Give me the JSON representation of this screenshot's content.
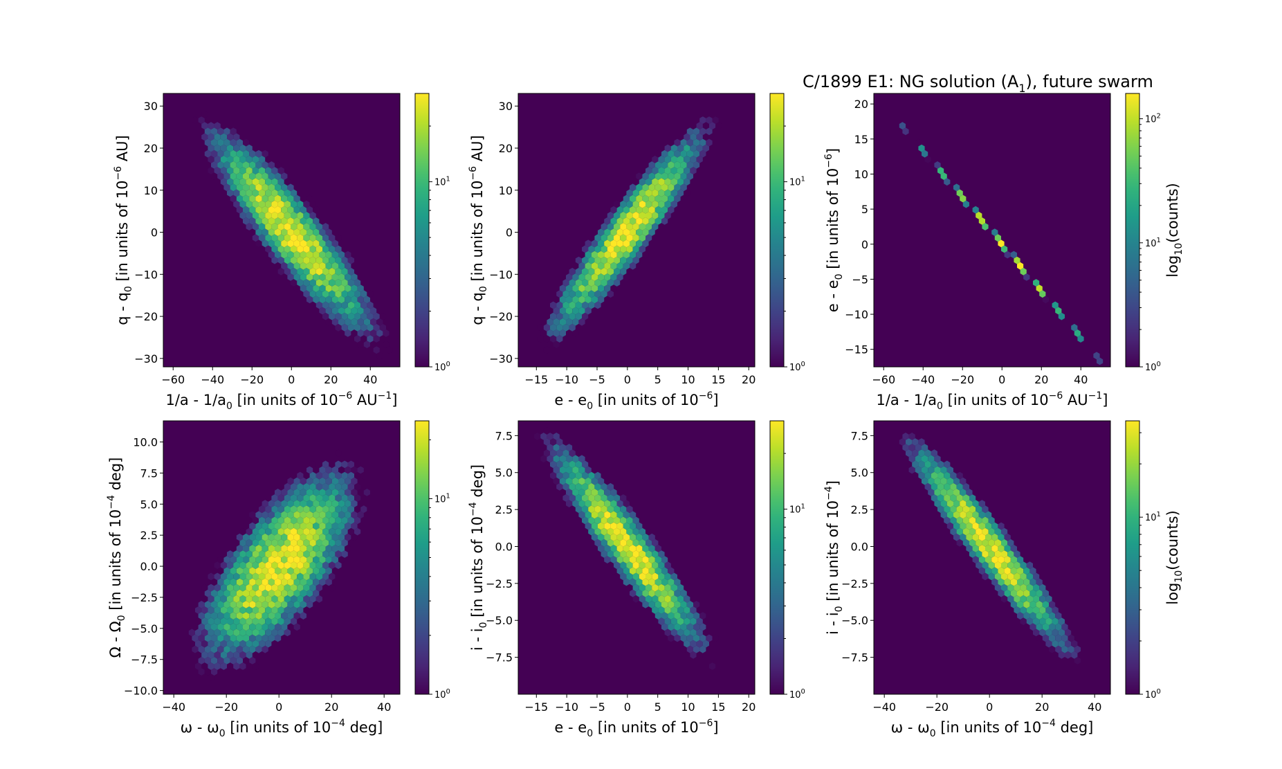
{
  "figure_title": "C/1899 E1:  NG solution (A",
  "figure_title_sub": "1",
  "figure_title_end": "), future swarm",
  "colors": {
    "background": "#440154",
    "cmap": [
      "#440154",
      "#482878",
      "#3e4989",
      "#31688e",
      "#26828e",
      "#1f9e89",
      "#35b779",
      "#6ece58",
      "#b5de2b",
      "#fde725"
    ]
  },
  "chart_data": [
    {
      "type": "hexbin",
      "id": "p1",
      "xlabel": [
        "1/a - 1/a",
        "0",
        " [in units of 10",
        "−6",
        " AU",
        "−1",
        "]"
      ],
      "ylabel": [
        "q - q",
        "0",
        " [in units of 10",
        "−6",
        " AU]"
      ],
      "xlim": [
        -65,
        55
      ],
      "ylim": [
        -32,
        33
      ],
      "xticks": [
        -60,
        -40,
        -20,
        0,
        20,
        40
      ],
      "xtick_labels": [
        "−60",
        "−40",
        "−20",
        "0",
        "20",
        "40"
      ],
      "yticks": [
        -30,
        -20,
        -10,
        0,
        10,
        20,
        30
      ],
      "ytick_labels": [
        "−30",
        "−20",
        "−10",
        "0",
        "10",
        "20",
        "30"
      ],
      "corr": -0.9,
      "sx": 18,
      "sy": 10.5,
      "max_count": 30,
      "colorbar": {
        "scale": "log",
        "min": 1,
        "max": 30,
        "ticks": [
          1,
          10
        ],
        "tick_labels": [
          [
            "10",
            "0"
          ],
          [
            "10",
            "1"
          ]
        ],
        "label": ""
      }
    },
    {
      "type": "hexbin",
      "id": "p2",
      "xlabel": [
        "e - e",
        "0",
        " [in units of 10",
        "−6",
        "]"
      ],
      "ylabel": [
        "q - q",
        "0",
        " [in units of 10",
        "−6",
        " AU]"
      ],
      "xlim": [
        -18,
        21
      ],
      "ylim": [
        -32,
        33
      ],
      "xticks": [
        -15,
        -10,
        -5,
        0,
        5,
        10,
        15,
        20
      ],
      "xtick_labels": [
        "−15",
        "−10",
        "−5",
        "0",
        "5",
        "10",
        "15",
        "20"
      ],
      "yticks": [
        -30,
        -20,
        -10,
        0,
        10,
        20,
        30
      ],
      "ytick_labels": [
        "−30",
        "−20",
        "−10",
        "0",
        "10",
        "20",
        "30"
      ],
      "corr": 0.93,
      "sx": 5.5,
      "sy": 10.5,
      "max_count": 30,
      "colorbar": {
        "scale": "log",
        "min": 1,
        "max": 30,
        "ticks": [
          1,
          10
        ],
        "tick_labels": [
          [
            "10",
            "0"
          ],
          [
            "10",
            "1"
          ]
        ],
        "label": ""
      }
    },
    {
      "type": "hexbin",
      "id": "p3",
      "xlabel": [
        "1/a - 1/a",
        "0",
        " [in units of 10",
        "−6",
        " AU",
        "−1",
        "]"
      ],
      "ylabel": [
        "e - e",
        "0",
        " [in units of 10",
        "−6",
        "]"
      ],
      "xlim": [
        -65,
        55
      ],
      "ylim": [
        -17.5,
        21.5
      ],
      "xticks": [
        -60,
        -40,
        -20,
        0,
        20,
        40
      ],
      "xtick_labels": [
        "−60",
        "−40",
        "−20",
        "0",
        "20",
        "40"
      ],
      "yticks": [
        -15,
        -10,
        -5,
        0,
        5,
        10,
        15,
        20
      ],
      "ytick_labels": [
        "−15",
        "−10",
        "−5",
        "0",
        "5",
        "10",
        "15",
        "20"
      ],
      "corr": -0.9995,
      "sx": 18,
      "sy": 6.0,
      "max_count": 160,
      "colorbar": {
        "scale": "log",
        "min": 1,
        "max": 160,
        "ticks": [
          1,
          10,
          100
        ],
        "tick_labels": [
          [
            "10",
            "0"
          ],
          [
            "10",
            "1"
          ],
          [
            "10",
            "2"
          ]
        ],
        "label": [
          "log",
          "10",
          "(counts)"
        ]
      }
    },
    {
      "type": "hexbin",
      "id": "p4",
      "xlabel": [
        "ω - ω",
        "0",
        " [in units of 10",
        "−4",
        " deg]"
      ],
      "ylabel": [
        "Ω - Ω",
        "0",
        " [in units of 10",
        "−4",
        " deg]"
      ],
      "xlim": [
        -44,
        46
      ],
      "ylim": [
        -10.3,
        11.7
      ],
      "xticks": [
        -40,
        -20,
        0,
        20,
        40
      ],
      "xtick_labels": [
        "−40",
        "−20",
        "0",
        "20",
        "40"
      ],
      "yticks": [
        -10,
        -7.5,
        -5,
        -2.5,
        0,
        2.5,
        5,
        7.5,
        10
      ],
      "ytick_labels": [
        "−10.0",
        "−7.5",
        "−5.0",
        "−2.5",
        "0.0",
        "2.5",
        "5.0",
        "7.5",
        "10.0"
      ],
      "corr": 0.7,
      "sx": 13,
      "sy": 3.4,
      "max_count": 25,
      "colorbar": {
        "scale": "log",
        "min": 1,
        "max": 25,
        "ticks": [
          1,
          10
        ],
        "tick_labels": [
          [
            "10",
            "0"
          ],
          [
            "10",
            "1"
          ]
        ],
        "label": ""
      }
    },
    {
      "type": "hexbin",
      "id": "p5",
      "xlabel": [
        "e - e",
        "0",
        " [in units of 10",
        "−6",
        "]"
      ],
      "ylabel": [
        "i - i",
        "0",
        " [in units of 10",
        "−4",
        " deg]"
      ],
      "xlim": [
        -18,
        21
      ],
      "ylim": [
        -10,
        8.5
      ],
      "xticks": [
        -15,
        -10,
        -5,
        0,
        5,
        10,
        15,
        20
      ],
      "xtick_labels": [
        "−15",
        "−10",
        "−5",
        "0",
        "5",
        "10",
        "15",
        "20"
      ],
      "yticks": [
        -7.5,
        -5,
        -2.5,
        0,
        2.5,
        5,
        7.5
      ],
      "ytick_labels": [
        "−7.5",
        "−5.0",
        "−2.5",
        "0.0",
        "2.5",
        "5.0",
        "7.5"
      ],
      "corr": -0.93,
      "sx": 5.5,
      "sy": 3.0,
      "max_count": 30,
      "colorbar": {
        "scale": "log",
        "min": 1,
        "max": 30,
        "ticks": [
          1,
          10
        ],
        "tick_labels": [
          [
            "10",
            "0"
          ],
          [
            "10",
            "1"
          ]
        ],
        "label": ""
      }
    },
    {
      "type": "hexbin",
      "id": "p6",
      "xlabel": [
        "ω - ω",
        "0",
        " [in units of 10",
        "−4",
        " deg]"
      ],
      "ylabel": [
        "i - i",
        "0",
        " [in units of 10",
        "−4",
        "]"
      ],
      "xlim": [
        -44,
        46
      ],
      "ylim": [
        -10,
        8.5
      ],
      "xticks": [
        -40,
        -20,
        0,
        20,
        40
      ],
      "xtick_labels": [
        "−40",
        "−20",
        "0",
        "20",
        "40"
      ],
      "yticks": [
        -7.5,
        -5,
        -2.5,
        0,
        2.5,
        5,
        7.5
      ],
      "ytick_labels": [
        "−7.5",
        "−5.0",
        "−2.5",
        "0.0",
        "2.5",
        "5.0",
        "7.5"
      ],
      "corr": -0.95,
      "sx": 13,
      "sy": 3.0,
      "max_count": 35,
      "colorbar": {
        "scale": "log",
        "min": 1,
        "max": 35,
        "ticks": [
          1,
          10
        ],
        "tick_labels": [
          [
            "10",
            "0"
          ],
          [
            "10",
            "1"
          ]
        ],
        "label": [
          "log",
          "10",
          "(counts)"
        ]
      }
    }
  ]
}
